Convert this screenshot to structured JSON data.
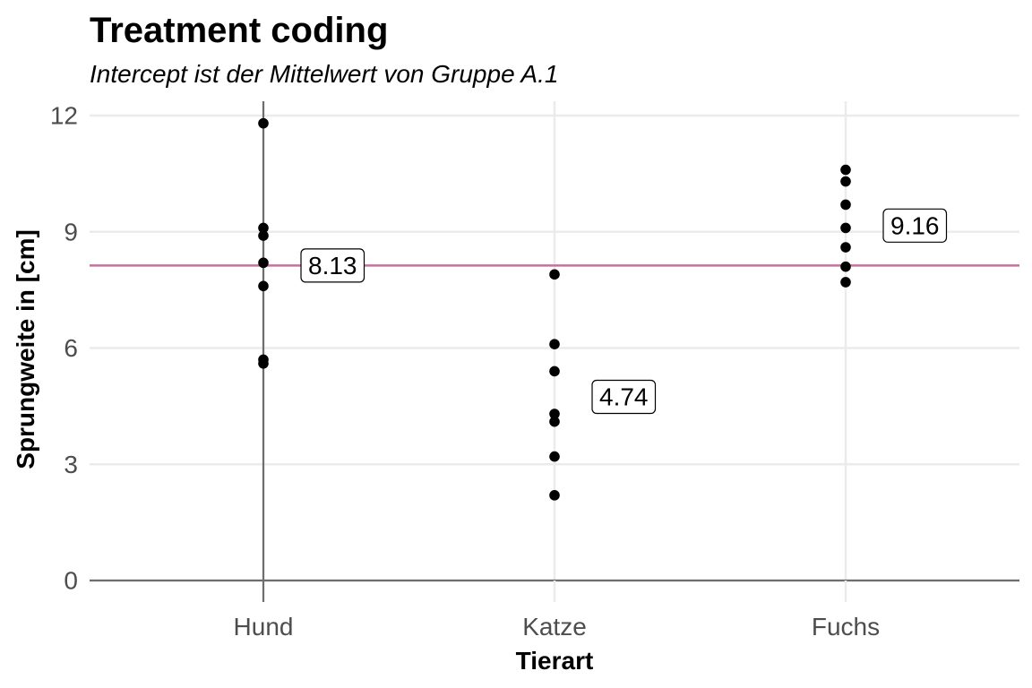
{
  "chart_data": {
    "type": "scatter",
    "title": "Treatment coding",
    "subtitle": "Intercept ist der Mittelwert von Gruppe A.1",
    "xlabel": "Tierart",
    "ylabel": "Sprungweite in [cm]",
    "categories": [
      "Hund",
      "Katze",
      "Fuchs"
    ],
    "y_ticks": [
      "0",
      "3",
      "6",
      "9",
      "12"
    ],
    "ylim": [
      0,
      12
    ],
    "grid": true,
    "points": [
      {
        "category": "Hund",
        "values": [
          11.8,
          9.1,
          8.9,
          8.2,
          7.6,
          5.7,
          5.6
        ]
      },
      {
        "category": "Katze",
        "values": [
          7.9,
          6.1,
          5.4,
          4.3,
          4.1,
          3.2,
          2.2
        ]
      },
      {
        "category": "Fuchs",
        "values": [
          10.6,
          10.3,
          9.7,
          9.1,
          8.6,
          8.1,
          7.7
        ]
      }
    ],
    "means": [
      {
        "category": "Hund",
        "value": 8.13,
        "label": "8.13"
      },
      {
        "category": "Katze",
        "value": 4.74,
        "label": "4.74"
      },
      {
        "category": "Fuchs",
        "value": 9.16,
        "label": "9.16"
      }
    ],
    "reference_line": {
      "y": 8.13
    },
    "colors": {
      "points": "#000000",
      "reference_line": "#c86fa0",
      "grid": "#ebebeb",
      "axis_lines": "#6e6e6e",
      "tick_labels": "#4d4d4d"
    }
  }
}
